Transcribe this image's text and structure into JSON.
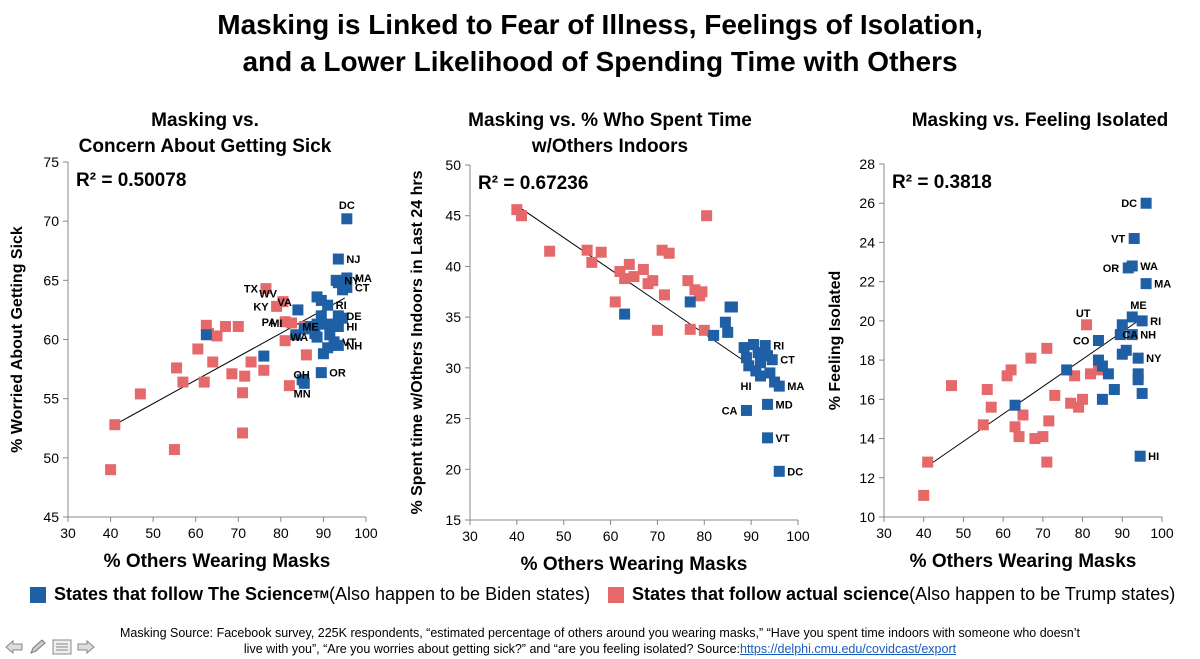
{
  "title_line1": "Masking is Linked to Fear of Illness, Feelings of Isolation,",
  "title_line2": "and a Lower Likelihood of Spending Time with Others",
  "legend": {
    "blue_label_bold": "States that follow The Science",
    "blue_superscript": "TM",
    "blue_label_rest": " (Also happen to be Biden states)",
    "red_label_bold": "States that follow actual science",
    "red_label_rest": " (Also happen to be Trump states)"
  },
  "colors": {
    "blue": "#1f5fa5",
    "red": "#e5696b",
    "trend": "#000000"
  },
  "source": {
    "line1": "Masking Source: Facebook survey, 225K respondents, “estimated percentage of others around you wearing masks,” “Have you spent time indoors with someone who doesn’t",
    "line2": "live with you”, “Are you worries about getting sick?” and “are you feeling isolated? Source:",
    "link": "https://delphi.cmu.edu/covidcast/export"
  },
  "nav_icons": [
    "arrow-left-icon",
    "pencil-icon",
    "menu-icon",
    "arrow-right-icon"
  ],
  "chart_data": [
    {
      "type": "scatter",
      "title_line1": "Masking vs.",
      "title_line2": "Concern About Getting Sick",
      "xlabel": "% Others Wearing Masks",
      "ylabel": "% Worried About Getting Sick",
      "r2": "R² = 0.50078",
      "xlim": [
        30,
        100
      ],
      "ylim": [
        45,
        75
      ],
      "xticks": [
        30,
        40,
        50,
        60,
        70,
        80,
        90,
        100
      ],
      "yticks": [
        45,
        50,
        55,
        60,
        65,
        70,
        75
      ],
      "trendline": [
        [
          41,
          52.8
        ],
        [
          95,
          63.5
        ]
      ],
      "series": [
        {
          "name": "blue",
          "points": [
            [
              95.5,
              70.2,
              "DC"
            ],
            [
              93.5,
              66.8,
              "NJ"
            ],
            [
              93,
              65,
              "NY"
            ],
            [
              95.5,
              65.2,
              "MA"
            ],
            [
              95.5,
              64.4,
              "CT"
            ],
            [
              93.5,
              64.8,
              ""
            ],
            [
              94.5,
              64.2,
              ""
            ],
            [
              88.5,
              63.6,
              ""
            ],
            [
              89.5,
              63.3,
              ""
            ],
            [
              91,
              62.9,
              "RI"
            ],
            [
              84,
              62.5,
              "VA"
            ],
            [
              93.5,
              62,
              "DE"
            ],
            [
              94.5,
              61.8,
              ""
            ],
            [
              89.5,
              62.0,
              ""
            ],
            [
              91,
              61.3,
              ""
            ],
            [
              93.5,
              61.1,
              "HI"
            ],
            [
              87,
              61.1,
              ""
            ],
            [
              88.5,
              61.3,
              ""
            ],
            [
              85.5,
              60.9,
              ""
            ],
            [
              88,
              60.5,
              ""
            ],
            [
              88.5,
              60.2,
              "WA"
            ],
            [
              91.5,
              60.4,
              ""
            ],
            [
              92.5,
              59.8,
              "VT"
            ],
            [
              91,
              59.3,
              ""
            ],
            [
              93.5,
              59.5,
              "NH"
            ],
            [
              90,
              58.8,
              ""
            ],
            [
              76,
              58.6,
              ""
            ],
            [
              83.5,
              60.4,
              ""
            ],
            [
              62.5,
              60.4,
              ""
            ],
            [
              89.5,
              57.2,
              "OR"
            ],
            [
              85,
              56.6,
              "MN"
            ],
            [
              85.5,
              56.3,
              ""
            ]
          ]
        },
        {
          "name": "red",
          "points": [
            [
              41,
              52.8,
              ""
            ],
            [
              40,
              49,
              ""
            ],
            [
              47,
              55.4,
              ""
            ],
            [
              55,
              50.7,
              ""
            ],
            [
              55.5,
              57.6,
              ""
            ],
            [
              57,
              56.4,
              ""
            ],
            [
              60.5,
              59.2,
              ""
            ],
            [
              62,
              56.4,
              ""
            ],
            [
              62.5,
              61.2,
              ""
            ],
            [
              63,
              60.5,
              ""
            ],
            [
              64,
              58.1,
              ""
            ],
            [
              65,
              60.3,
              ""
            ],
            [
              67,
              61.1,
              ""
            ],
            [
              68.5,
              57.1,
              ""
            ],
            [
              70,
              61.1,
              ""
            ],
            [
              71,
              55.5,
              ""
            ],
            [
              71.5,
              56.9,
              ""
            ],
            [
              71,
              52.1,
              ""
            ],
            [
              73,
              58.1,
              ""
            ],
            [
              76,
              57.4,
              ""
            ],
            [
              76.5,
              64.3,
              "TX"
            ],
            [
              79,
              62.8,
              "KY"
            ],
            [
              80.5,
              63.2,
              "WV"
            ],
            [
              81,
              61.5,
              "PA"
            ],
            [
              81,
              59.9,
              ""
            ],
            [
              82,
              56.1,
              "OH"
            ],
            [
              86,
              58.7,
              ""
            ],
            [
              85.5,
              61.1,
              "ME"
            ],
            [
              82.5,
              61.4,
              "MI"
            ]
          ]
        }
      ],
      "label_offsets": {}
    },
    {
      "type": "scatter",
      "title_line1": "Masking vs. % Who Spent Time",
      "title_line2": "w/Others Indoors",
      "xlabel": "% Others Wearing Masks",
      "ylabel": "% Spent time w/Others Indoors in Last 24 hrs",
      "r2": "R² = 0.67236",
      "xlim": [
        30,
        100
      ],
      "ylim": [
        15,
        50
      ],
      "xticks": [
        30,
        40,
        50,
        60,
        70,
        80,
        90,
        100
      ],
      "yticks": [
        15,
        20,
        25,
        30,
        35,
        40,
        45,
        50
      ],
      "trendline": [
        [
          40,
          46
        ],
        [
          97,
          28
        ]
      ],
      "series": [
        {
          "name": "blue",
          "points": [
            [
              63,
              35.3,
              ""
            ],
            [
              77,
              36.5,
              ""
            ],
            [
              84.5,
              34.5,
              ""
            ],
            [
              85.5,
              36,
              ""
            ],
            [
              86,
              36,
              ""
            ],
            [
              82,
              33.2,
              ""
            ],
            [
              85,
              33.5,
              ""
            ],
            [
              88.5,
              32,
              ""
            ],
            [
              89,
              31,
              ""
            ],
            [
              90.5,
              32.3,
              ""
            ],
            [
              91.5,
              31.5,
              ""
            ],
            [
              93,
              32.2,
              "RI"
            ],
            [
              92,
              30.5,
              ""
            ],
            [
              93.5,
              31.2,
              ""
            ],
            [
              94.5,
              30.8,
              "CT"
            ],
            [
              89.5,
              30.2,
              ""
            ],
            [
              91,
              29.7,
              ""
            ],
            [
              92,
              29.2,
              "HI"
            ],
            [
              94,
              29.5,
              ""
            ],
            [
              95,
              28.6,
              ""
            ],
            [
              96,
              28.2,
              "MA"
            ],
            [
              93.5,
              26.4,
              "MD"
            ],
            [
              89,
              25.8,
              "CA"
            ],
            [
              93.5,
              23.1,
              "VT"
            ],
            [
              96,
              19.8,
              "DC"
            ]
          ]
        },
        {
          "name": "red",
          "points": [
            [
              40,
              45.6,
              ""
            ],
            [
              41,
              45,
              ""
            ],
            [
              47,
              41.5,
              ""
            ],
            [
              55,
              41.6,
              ""
            ],
            [
              56,
              40.4,
              ""
            ],
            [
              58,
              41.4,
              ""
            ],
            [
              61,
              36.5,
              ""
            ],
            [
              62,
              39.5,
              ""
            ],
            [
              63,
              38.8,
              ""
            ],
            [
              64,
              40.2,
              ""
            ],
            [
              65,
              39,
              ""
            ],
            [
              67,
              39.7,
              ""
            ],
            [
              68,
              38.3,
              ""
            ],
            [
              69,
              38.6,
              ""
            ],
            [
              70,
              33.7,
              ""
            ],
            [
              71,
              41.6,
              ""
            ],
            [
              71.5,
              37.2,
              ""
            ],
            [
              72.5,
              41.3,
              ""
            ],
            [
              76.5,
              38.6,
              ""
            ],
            [
              77,
              33.8,
              ""
            ],
            [
              78,
              37.7,
              ""
            ],
            [
              79,
              37.1,
              ""
            ],
            [
              80,
              33.7,
              ""
            ],
            [
              80.5,
              45,
              ""
            ],
            [
              79.5,
              37.5,
              ""
            ]
          ]
        }
      ],
      "label_offsets": {}
    },
    {
      "type": "scatter",
      "title_line1": "Masking vs. Feeling Isolated",
      "title_line2": "",
      "xlabel": "% Others Wearing Masks",
      "ylabel": "% Feeling Isolated",
      "r2": "R² = 0.3818",
      "xlim": [
        30,
        100
      ],
      "ylim": [
        10,
        28
      ],
      "xticks": [
        30,
        40,
        50,
        60,
        70,
        80,
        90,
        100
      ],
      "yticks": [
        10,
        12,
        14,
        16,
        18,
        20,
        22,
        24,
        26,
        28
      ],
      "trendline": [
        [
          41,
          12.6
        ],
        [
          94,
          20
        ]
      ],
      "series": [
        {
          "name": "blue",
          "points": [
            [
              96,
              26,
              "DC"
            ],
            [
              93,
              24.2,
              "VT"
            ],
            [
              91.5,
              22.7,
              "OR"
            ],
            [
              92.5,
              22.8,
              "WA"
            ],
            [
              96,
              21.9,
              "MA"
            ],
            [
              92.5,
              20.2,
              "ME"
            ],
            [
              95,
              20,
              "RI"
            ],
            [
              90,
              19.8,
              ""
            ],
            [
              92.5,
              19.3,
              "NH"
            ],
            [
              89.5,
              19.3,
              "CA"
            ],
            [
              84,
              19,
              "CO"
            ],
            [
              91,
              18.5,
              ""
            ],
            [
              90,
              18.3,
              ""
            ],
            [
              84,
              18,
              ""
            ],
            [
              85,
              17.7,
              ""
            ],
            [
              94,
              18.1,
              "NY"
            ],
            [
              76,
              17.5,
              ""
            ],
            [
              86.5,
              17.3,
              ""
            ],
            [
              94,
              17.3,
              ""
            ],
            [
              94,
              17,
              ""
            ],
            [
              88,
              16.5,
              ""
            ],
            [
              95,
              16.3,
              ""
            ],
            [
              85,
              16,
              ""
            ],
            [
              63,
              15.7,
              ""
            ],
            [
              94.5,
              13.1,
              "HI"
            ]
          ]
        },
        {
          "name": "red",
          "points": [
            [
              40,
              11.1,
              ""
            ],
            [
              41,
              12.8,
              ""
            ],
            [
              47,
              16.7,
              ""
            ],
            [
              55,
              14.7,
              ""
            ],
            [
              56,
              16.5,
              ""
            ],
            [
              57,
              15.6,
              ""
            ],
            [
              61,
              17.2,
              ""
            ],
            [
              62,
              17.5,
              ""
            ],
            [
              63,
              14.6,
              ""
            ],
            [
              64,
              14.1,
              ""
            ],
            [
              65,
              15.2,
              ""
            ],
            [
              67,
              18.1,
              ""
            ],
            [
              68,
              14,
              ""
            ],
            [
              70,
              14.1,
              ""
            ],
            [
              71,
              12.8,
              ""
            ],
            [
              71,
              18.6,
              ""
            ],
            [
              71.5,
              14.9,
              ""
            ],
            [
              73,
              16.2,
              ""
            ],
            [
              77,
              15.8,
              ""
            ],
            [
              78,
              17.2,
              ""
            ],
            [
              79,
              15.6,
              ""
            ],
            [
              80,
              16,
              ""
            ],
            [
              81,
              19.8,
              "UT"
            ],
            [
              82,
              17.3,
              ""
            ],
            [
              84,
              17.5,
              ""
            ]
          ]
        }
      ],
      "label_offsets": {}
    }
  ]
}
